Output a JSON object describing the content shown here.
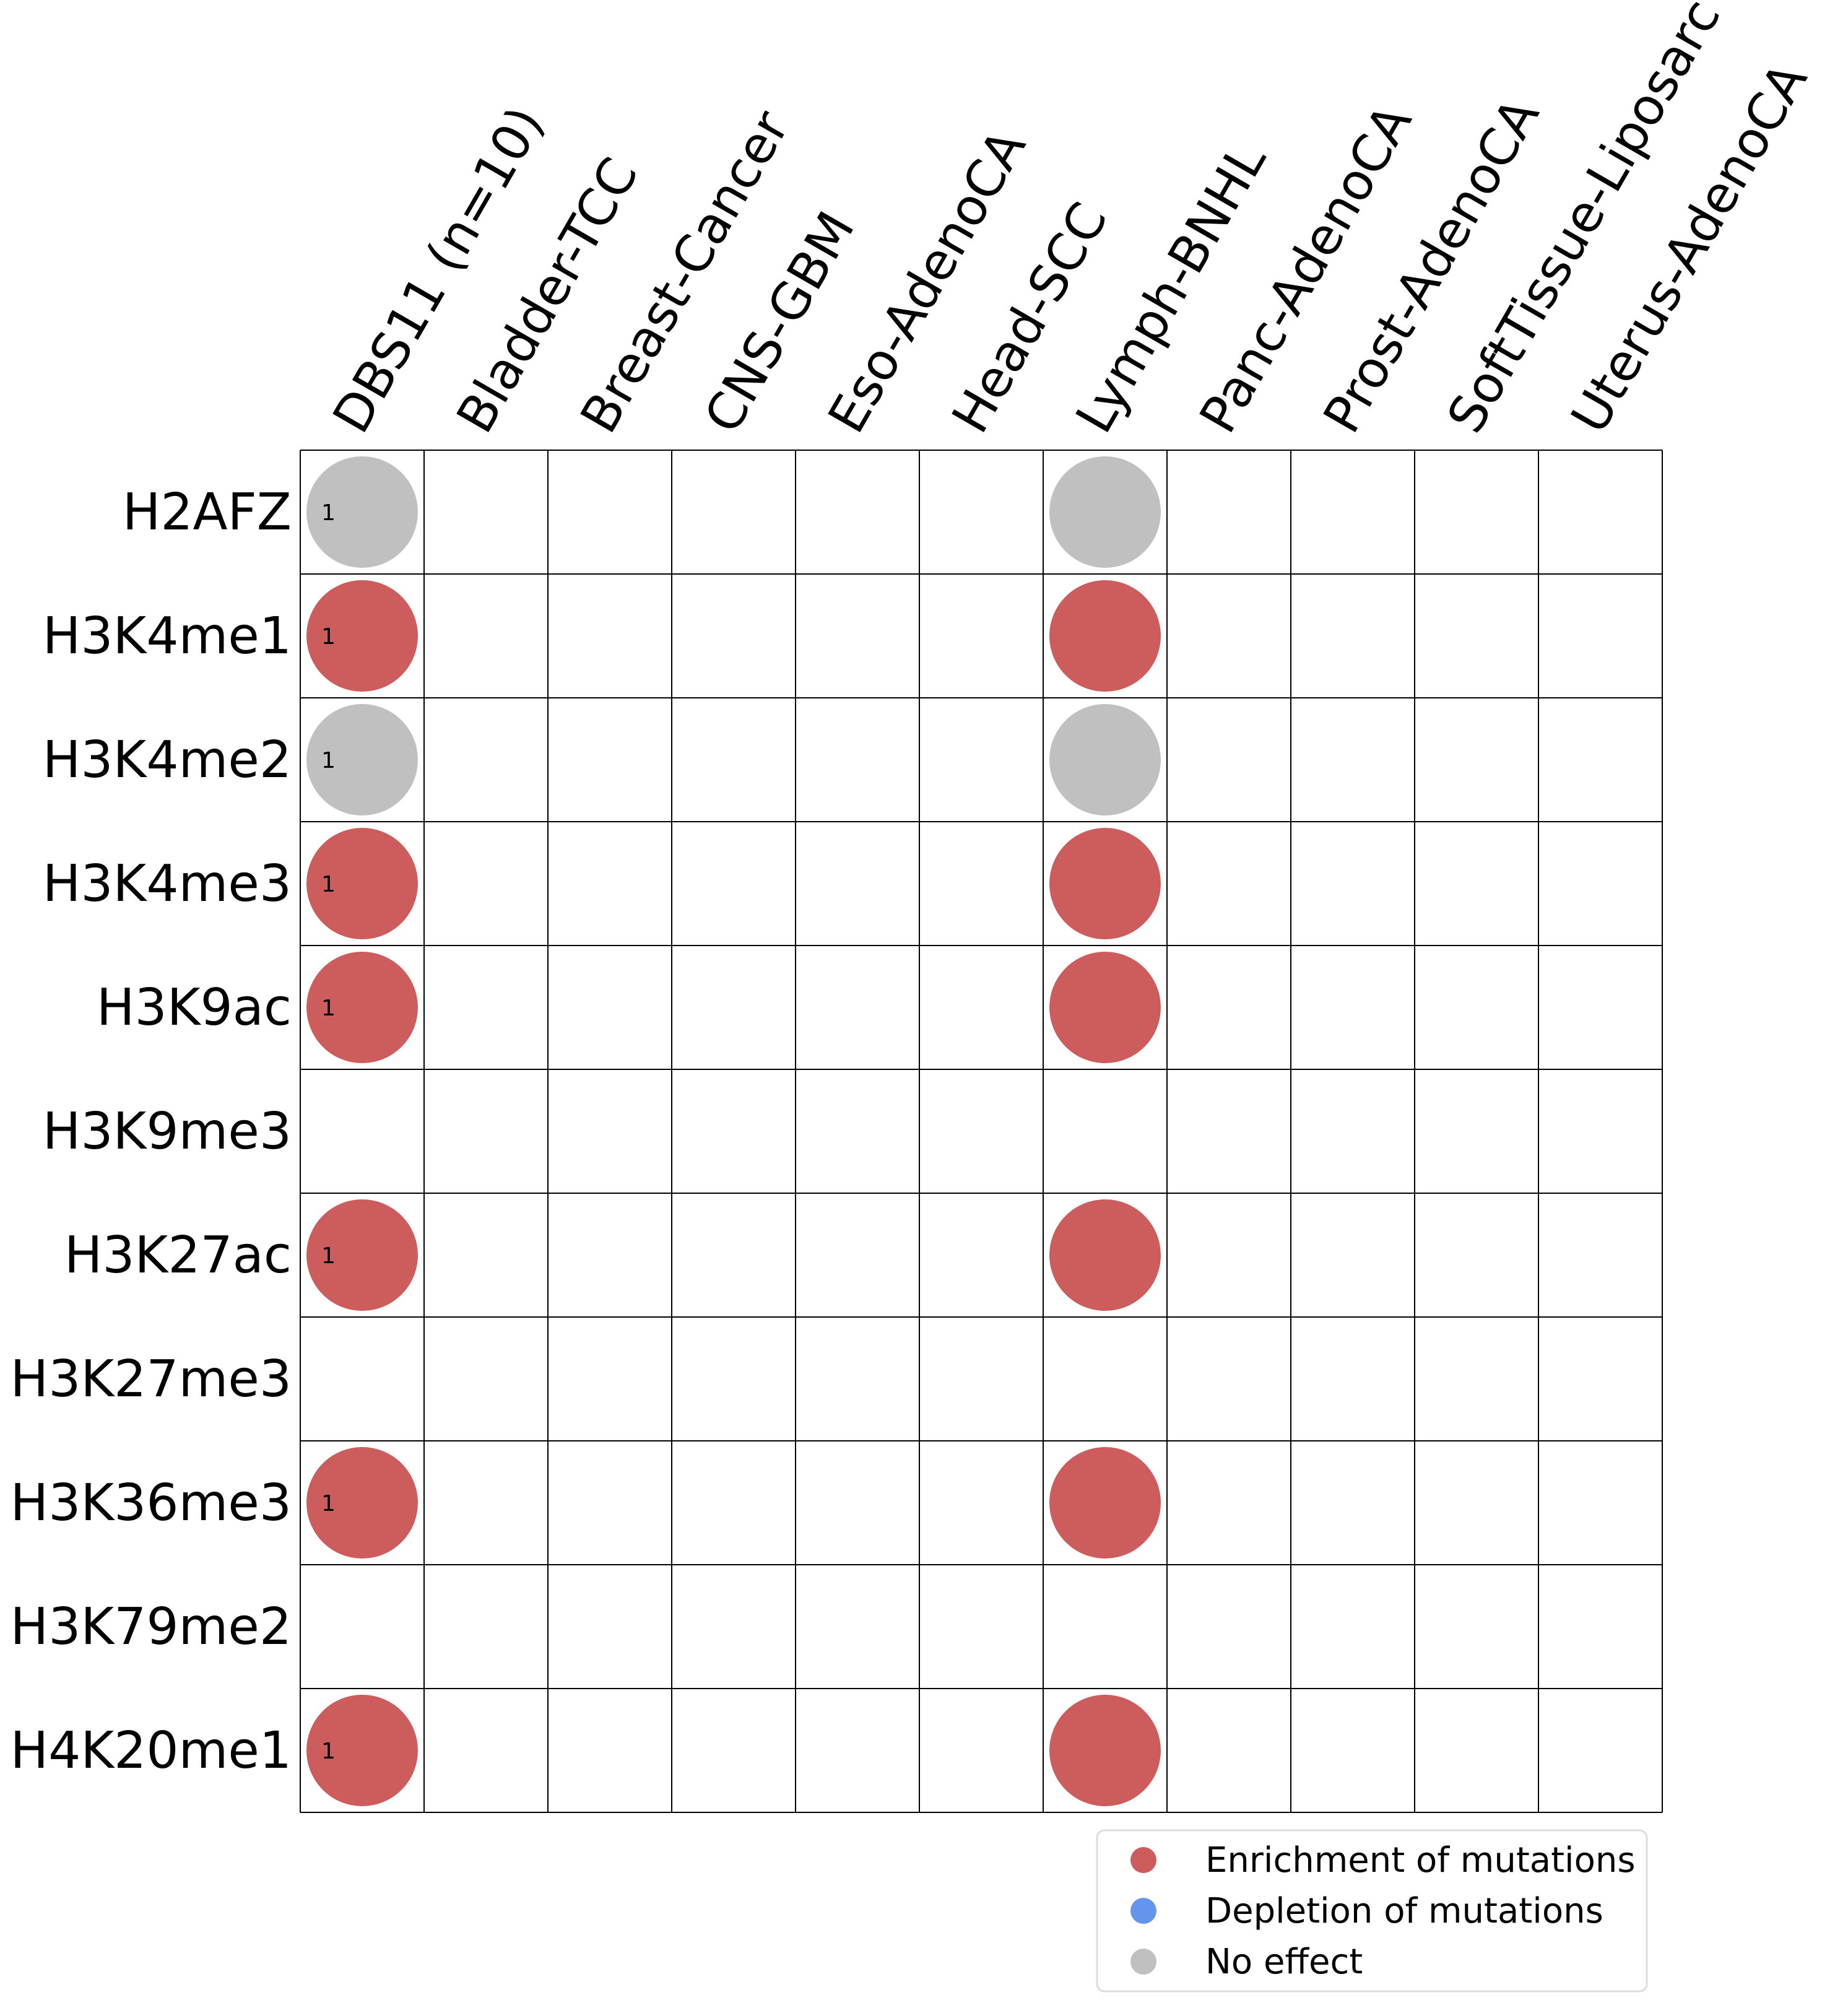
{
  "chart_data": {
    "type": "heatmap",
    "title": "",
    "xlabel": "",
    "ylabel": "",
    "columns": [
      "DBS11 (n=10)",
      "Bladder-TCC",
      "Breast-Cancer",
      "CNS-GBM",
      "Eso-AdenoCA",
      "Head-SCC",
      "Lymph-BNHL",
      "Panc-AdenoCA",
      "Prost-AdenoCA",
      "SoftTissue-Liposarc",
      "Uterus-AdenoCA"
    ],
    "rows": [
      "H2AFZ",
      "H3K4me1",
      "H3K4me2",
      "H3K4me3",
      "H3K9ac",
      "H3K9me3",
      "H3K27ac",
      "H3K27me3",
      "H3K36me3",
      "H3K79me2",
      "H4K20me1"
    ],
    "cells": [
      {
        "row": "H2AFZ",
        "column": "DBS11 (n=10)",
        "effect": "No effect",
        "label": "1"
      },
      {
        "row": "H2AFZ",
        "column": "Lymph-BNHL",
        "effect": "No effect",
        "label": ""
      },
      {
        "row": "H3K4me1",
        "column": "DBS11 (n=10)",
        "effect": "Enrichment of mutations",
        "label": "1"
      },
      {
        "row": "H3K4me1",
        "column": "Lymph-BNHL",
        "effect": "Enrichment of mutations",
        "label": ""
      },
      {
        "row": "H3K4me2",
        "column": "DBS11 (n=10)",
        "effect": "No effect",
        "label": "1"
      },
      {
        "row": "H3K4me2",
        "column": "Lymph-BNHL",
        "effect": "No effect",
        "label": ""
      },
      {
        "row": "H3K4me3",
        "column": "DBS11 (n=10)",
        "effect": "Enrichment of mutations",
        "label": "1"
      },
      {
        "row": "H3K4me3",
        "column": "Lymph-BNHL",
        "effect": "Enrichment of mutations",
        "label": ""
      },
      {
        "row": "H3K9ac",
        "column": "DBS11 (n=10)",
        "effect": "Enrichment of mutations",
        "label": "1"
      },
      {
        "row": "H3K9ac",
        "column": "Lymph-BNHL",
        "effect": "Enrichment of mutations",
        "label": ""
      },
      {
        "row": "H3K27ac",
        "column": "DBS11 (n=10)",
        "effect": "Enrichment of mutations",
        "label": "1"
      },
      {
        "row": "H3K27ac",
        "column": "Lymph-BNHL",
        "effect": "Enrichment of mutations",
        "label": ""
      },
      {
        "row": "H3K36me3",
        "column": "DBS11 (n=10)",
        "effect": "Enrichment of mutations",
        "label": "1"
      },
      {
        "row": "H3K36me3",
        "column": "Lymph-BNHL",
        "effect": "Enrichment of mutations",
        "label": ""
      },
      {
        "row": "H4K20me1",
        "column": "DBS11 (n=10)",
        "effect": "Enrichment of mutations",
        "label": "1"
      },
      {
        "row": "H4K20me1",
        "column": "Lymph-BNHL",
        "effect": "Enrichment of mutations",
        "label": ""
      }
    ],
    "legend": {
      "position": "bottom-right",
      "entries": [
        {
          "label": "Enrichment of mutations",
          "color": "#cd5c5c"
        },
        {
          "label": "Depletion of mutations",
          "color": "#6495ed"
        },
        {
          "label": "No effect",
          "color": "#c0c0c0"
        }
      ]
    },
    "grid": true
  }
}
